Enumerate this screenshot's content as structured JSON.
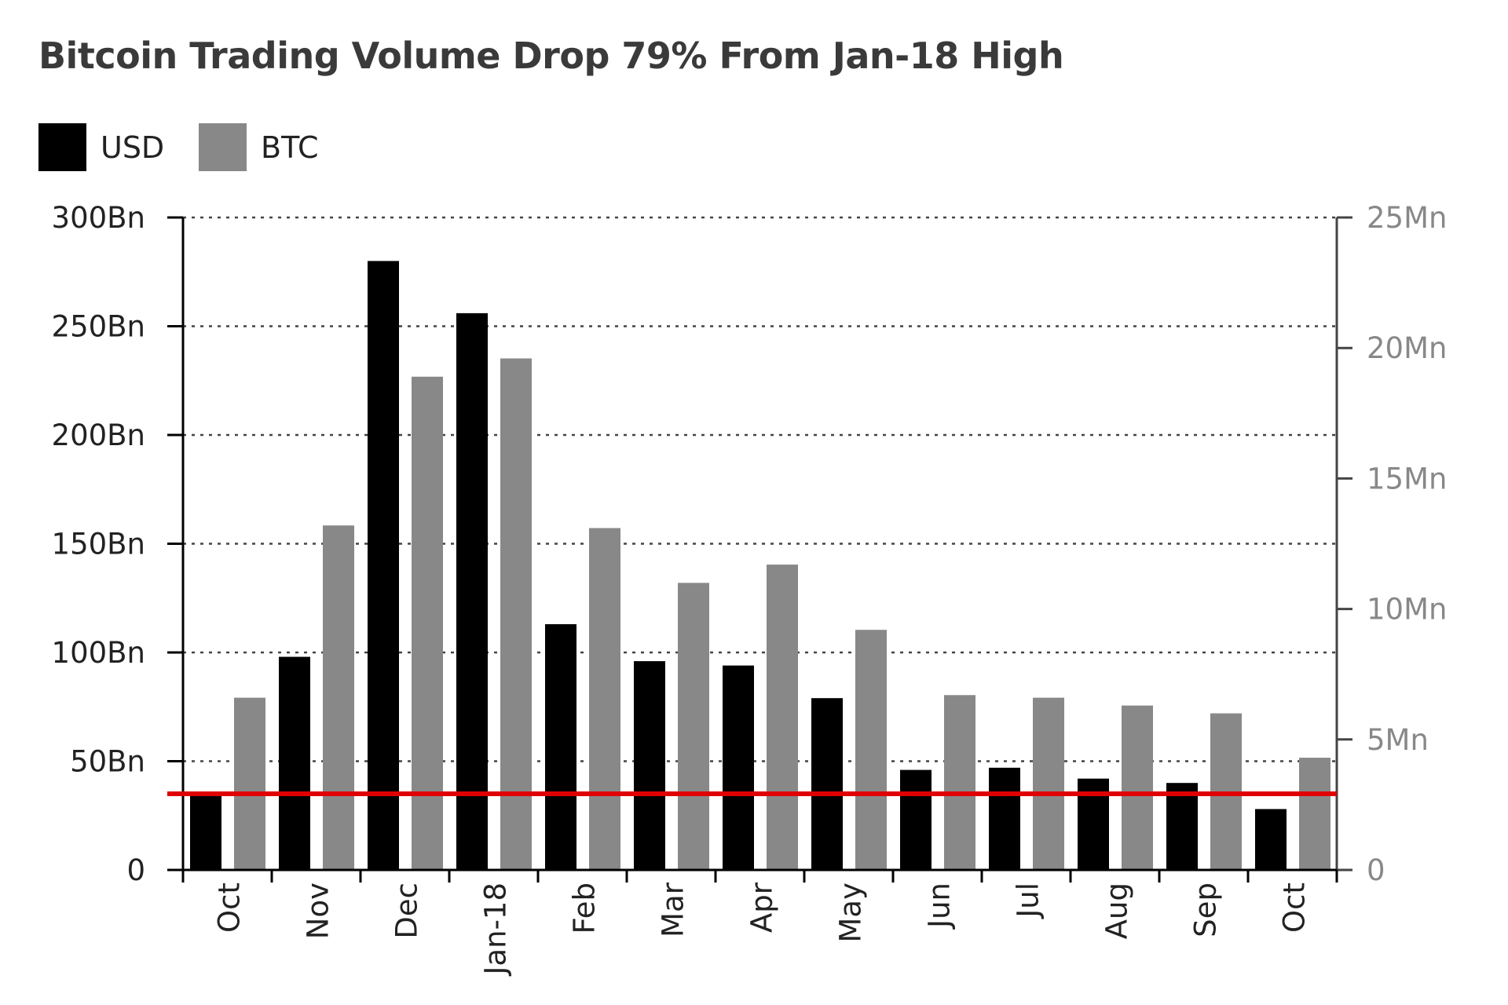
{
  "chart_data": {
    "type": "bar",
    "title": "Bitcoin Trading Volume Drop 79% From Jan-18 High",
    "categories": [
      "Oct",
      "Nov",
      "Dec",
      "Jan-18",
      "Feb",
      "Mar",
      "Apr",
      "May",
      "Jun",
      "Jul",
      "Aug",
      "Sep",
      "Oct"
    ],
    "series": [
      {
        "name": "USD",
        "axis": "left",
        "unit": "Bn",
        "color": "#000000",
        "values": [
          35,
          98,
          280,
          256,
          113,
          96,
          94,
          79,
          46,
          47,
          42,
          40,
          28
        ]
      },
      {
        "name": "BTC",
        "axis": "right",
        "unit": "Mn",
        "color": "#888888",
        "values": [
          6.6,
          13.2,
          18.9,
          19.6,
          13.1,
          11.0,
          11.7,
          9.2,
          6.7,
          6.6,
          6.3,
          6.0,
          4.3
        ]
      }
    ],
    "left_axis": {
      "ylim": [
        0,
        300
      ],
      "ticks": [
        0,
        50,
        100,
        150,
        200,
        250,
        300
      ],
      "tick_labels": [
        "0",
        "50Bn",
        "100Bn",
        "150Bn",
        "200Bn",
        "250Bn",
        "300Bn"
      ]
    },
    "right_axis": {
      "ylim": [
        0,
        25
      ],
      "ticks": [
        0,
        5,
        10,
        15,
        20,
        25
      ],
      "tick_labels": [
        "0",
        "5Mn",
        "10Mn",
        "15Mn",
        "20Mn",
        "25Mn"
      ]
    },
    "reference_line": {
      "value": 35,
      "axis": "left",
      "color": "#e00000"
    },
    "grid": "horizontal dotted",
    "legend_position": "top-left"
  }
}
